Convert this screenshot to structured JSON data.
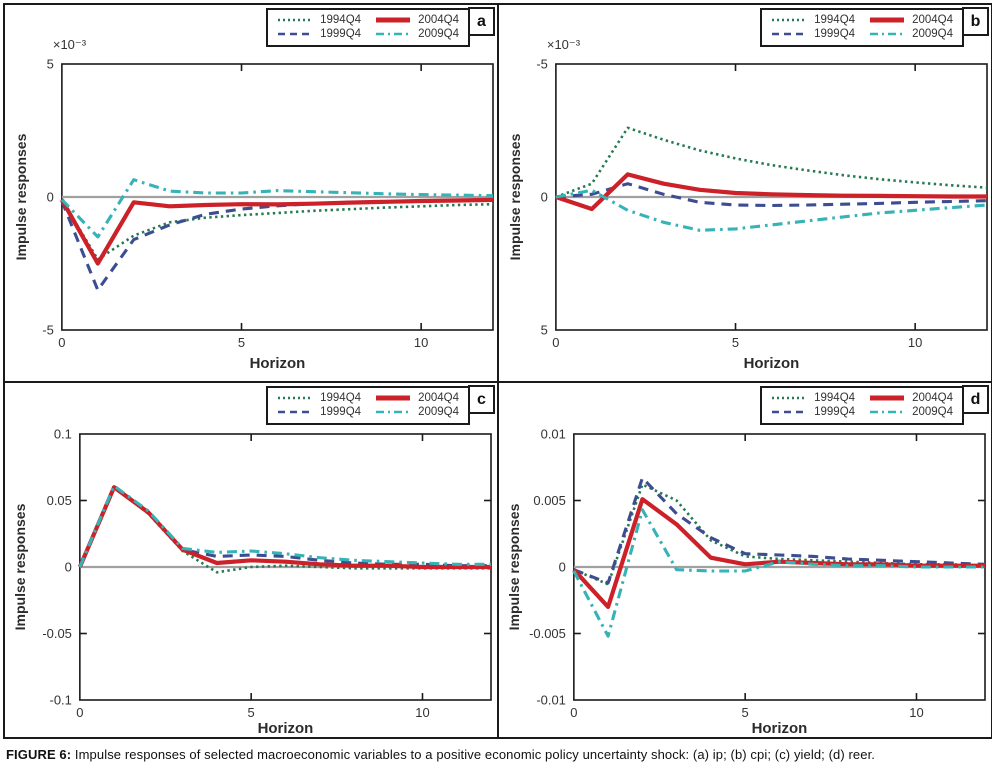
{
  "figure": {
    "caption_prefix": "FIGURE 6:",
    "caption_text": "Impulse responses of selected macroeconomic variables to a positive economic policy uncertainty shock: (a) ip; (b) cpi; (c) yield; (d) reer."
  },
  "colors": {
    "axis": "#1a1a1a",
    "zero_line": "#a0a0a0",
    "tick_text": "#333333",
    "series_1994": "#267a52",
    "series_1999": "#3c4d91",
    "series_2004": "#cc2128",
    "series_2009": "#35b3b6"
  },
  "legend": {
    "items": [
      {
        "label": "1994Q4",
        "style": "dotted",
        "color": "#267a52"
      },
      {
        "label": "1999Q4",
        "style": "dashed",
        "color": "#3c4d91"
      },
      {
        "label": "2004Q4",
        "style": "solid",
        "color": "#cc2128"
      },
      {
        "label": "2009Q4",
        "style": "dashdot",
        "color": "#35b3b6"
      }
    ]
  },
  "chart_data": {
    "type": "line",
    "xlabel": "Horizon",
    "ylabel": "Impulse responses",
    "x": [
      0,
      1,
      2,
      3,
      4,
      5,
      6,
      7,
      8,
      9,
      10,
      11,
      12
    ],
    "xlim": [
      0,
      12
    ],
    "x_ticks": [
      0,
      5,
      10
    ],
    "grid": "off",
    "legend_position": "top-right",
    "panels": [
      {
        "label": "a",
        "variable": "ip",
        "scale_label": "×10⁻³",
        "y_top": 5,
        "y_bottom": -5,
        "y_ticks": [
          5,
          0,
          -5
        ],
        "series": [
          {
            "name": "1994Q4",
            "values": [
              -0.1,
              -2.35,
              -1.45,
              -0.95,
              -0.78,
              -0.68,
              -0.6,
              -0.52,
              -0.46,
              -0.4,
              -0.35,
              -0.3,
              -0.27
            ]
          },
          {
            "name": "1999Q4",
            "values": [
              -0.15,
              -3.5,
              -1.6,
              -1.05,
              -0.65,
              -0.45,
              -0.33,
              -0.25,
              -0.2,
              -0.17,
              -0.15,
              -0.13,
              -0.11
            ]
          },
          {
            "name": "2004Q4",
            "values": [
              -0.1,
              -2.5,
              -0.2,
              -0.35,
              -0.3,
              -0.27,
              -0.28,
              -0.25,
              -0.21,
              -0.18,
              -0.15,
              -0.13,
              -0.11
            ]
          },
          {
            "name": "2009Q4",
            "values": [
              -0.1,
              -1.5,
              0.65,
              0.22,
              0.15,
              0.15,
              0.24,
              0.2,
              0.16,
              0.12,
              0.09,
              0.07,
              0.05
            ]
          }
        ]
      },
      {
        "label": "b",
        "variable": "cpi",
        "scale_label": "×10⁻³",
        "y_top": -5,
        "y_bottom": 5,
        "y_ticks": [
          -5,
          0,
          5
        ],
        "series": [
          {
            "name": "1994Q4",
            "values": [
              0.0,
              -0.5,
              -2.6,
              -2.15,
              -1.75,
              -1.45,
              -1.2,
              -1.0,
              -0.82,
              -0.67,
              -0.55,
              -0.44,
              -0.35
            ]
          },
          {
            "name": "1999Q4",
            "values": [
              0.0,
              -0.1,
              -0.5,
              -0.1,
              0.2,
              0.3,
              0.32,
              0.3,
              0.27,
              0.24,
              0.2,
              0.17,
              0.14
            ]
          },
          {
            "name": "2004Q4",
            "values": [
              0.0,
              0.45,
              -0.85,
              -0.5,
              -0.27,
              -0.15,
              -0.1,
              -0.07,
              -0.05,
              -0.04,
              -0.03,
              -0.02,
              -0.02
            ]
          },
          {
            "name": "2009Q4",
            "values": [
              0.0,
              -0.25,
              0.5,
              0.95,
              1.25,
              1.2,
              1.05,
              0.9,
              0.75,
              0.6,
              0.5,
              0.4,
              0.3
            ]
          }
        ]
      },
      {
        "label": "c",
        "variable": "yield",
        "scale_label": "",
        "y_top": 0.1,
        "y_bottom": -0.1,
        "y_ticks": [
          0.1,
          0.05,
          0,
          -0.05,
          -0.1
        ],
        "series": [
          {
            "name": "1994Q4",
            "values": [
              0.0,
              0.06,
              0.04,
              0.012,
              -0.004,
              0.0,
              0.001,
              0.0,
              -0.001,
              -0.001,
              -0.001,
              -0.001,
              -0.001
            ]
          },
          {
            "name": "1999Q4",
            "values": [
              0.0,
              0.06,
              0.041,
              0.013,
              0.008,
              0.009,
              0.008,
              0.005,
              0.003,
              0.002,
              0.002,
              0.001,
              0.001
            ]
          },
          {
            "name": "2004Q4",
            "values": [
              0.0,
              0.06,
              0.041,
              0.013,
              0.003,
              0.005,
              0.004,
              0.002,
              0.001,
              0.001,
              0.0,
              0.0,
              0.0
            ]
          },
          {
            "name": "2009Q4",
            "values": [
              0.0,
              0.061,
              0.042,
              0.014,
              0.011,
              0.012,
              0.01,
              0.007,
              0.005,
              0.004,
              0.003,
              0.002,
              0.002
            ]
          }
        ]
      },
      {
        "label": "d",
        "variable": "reer",
        "scale_label": "",
        "y_top": 0.01,
        "y_bottom": -0.01,
        "y_ticks": [
          0.01,
          0.005,
          0,
          -0.005,
          -0.01
        ],
        "series": [
          {
            "name": "1994Q4",
            "values": [
              -0.0002,
              -0.0013,
              0.0062,
              0.005,
              0.002,
              0.0008,
              0.0006,
              0.0005,
              0.0004,
              0.0003,
              0.0002,
              0.0002,
              0.0001
            ]
          },
          {
            "name": "1999Q4",
            "values": [
              -0.0002,
              -0.0012,
              0.0067,
              0.004,
              0.0022,
              0.001,
              0.0009,
              0.0008,
              0.0006,
              0.0005,
              0.0004,
              0.0003,
              0.0002
            ]
          },
          {
            "name": "2004Q4",
            "values": [
              -0.0002,
              -0.003,
              0.0051,
              0.0032,
              0.0007,
              0.0002,
              0.0004,
              0.0003,
              0.0002,
              0.0002,
              0.0001,
              0.0001,
              0.0001
            ]
          },
          {
            "name": "2009Q4",
            "values": [
              -0.0003,
              -0.0052,
              0.0043,
              -0.0002,
              -0.0003,
              -0.0003,
              0.0004,
              0.0002,
              0.0001,
              0.0001,
              0.0,
              0.0,
              0.0
            ]
          }
        ]
      }
    ]
  }
}
